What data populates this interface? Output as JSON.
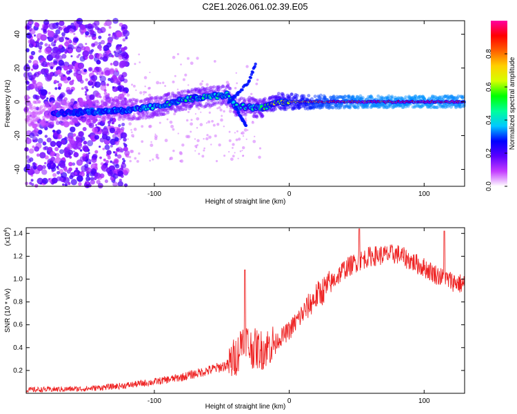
{
  "title": "C2E1.2026.061.02.39.E05",
  "chart_data": [
    {
      "type": "heatmap",
      "xlabel": "Height of straight line (km)",
      "ylabel": "Frequency (Hz)",
      "xlim": [
        -195,
        130
      ],
      "ylim": [
        -50,
        48
      ],
      "xticks": [
        -100,
        0,
        100
      ],
      "xtick_labels": [
        "-100",
        "0",
        "100"
      ],
      "yticks": [
        -40,
        -20,
        0,
        20,
        40
      ],
      "ytick_labels": [
        "-40",
        "-20",
        "0",
        "20",
        "40"
      ],
      "colorbar": {
        "label": "Normalized spectral amplitude",
        "range": [
          0.0,
          1.0
        ],
        "ticks": [
          0.0,
          0.2,
          0.4,
          0.6,
          0.8
        ],
        "tick_labels": [
          "0.0",
          "0.2",
          "0.4",
          "0.6",
          "0.8"
        ],
        "colors": [
          "#ffffff",
          "#c33cff",
          "#5a00ff",
          "#0000ff",
          "#00c8ff",
          "#00ff9a",
          "#00ff00",
          "#d6ff00",
          "#ffd000",
          "#ff6000",
          "#ff0000",
          "#ff00a0"
        ]
      },
      "ridge": [
        {
          "x": -195,
          "f": -7,
          "amp": 0.05
        },
        {
          "x": -180,
          "f": -7,
          "amp": 0.15
        },
        {
          "x": -150,
          "f": -6,
          "amp": 0.3
        },
        {
          "x": -120,
          "f": -5,
          "amp": 0.35
        },
        {
          "x": -100,
          "f": -3,
          "amp": 0.4
        },
        {
          "x": -80,
          "f": 1,
          "amp": 0.45
        },
        {
          "x": -60,
          "f": 3,
          "amp": 0.45
        },
        {
          "x": -45,
          "f": 4,
          "amp": 0.45
        },
        {
          "x": -40,
          "f": -3,
          "amp": 0.45
        },
        {
          "x": -30,
          "f": -3,
          "amp": 0.45
        },
        {
          "x": -20,
          "f": -4,
          "amp": 0.5
        },
        {
          "x": -10,
          "f": 0,
          "amp": 0.6
        },
        {
          "x": 0,
          "f": 0,
          "amp": 0.7
        },
        {
          "x": 20,
          "f": 0,
          "amp": 0.85
        },
        {
          "x": 50,
          "f": 0,
          "amp": 0.95
        },
        {
          "x": 100,
          "f": 0,
          "amp": 0.97
        },
        {
          "x": 130,
          "f": 0,
          "amp": 0.95
        }
      ],
      "branch": [
        {
          "x": -45,
          "f": 0
        },
        {
          "x": -38,
          "f": 5
        },
        {
          "x": -30,
          "f": 12
        },
        {
          "x": -25,
          "f": 22
        },
        {
          "x": -40,
          "f": -3
        },
        {
          "x": -35,
          "f": -10
        },
        {
          "x": -32,
          "f": -14
        }
      ]
    },
    {
      "type": "line",
      "xlabel": "Height of straight line (km)",
      "ylabel": "SNR (10 * v/v)",
      "y_multiplier_label": "(x10",
      "y_multiplier_exp": "4",
      "xlim": [
        -195,
        130
      ],
      "ylim": [
        0.0,
        1.45
      ],
      "xticks": [
        -100,
        0,
        100
      ],
      "xtick_labels": [
        "-100",
        "0",
        "100"
      ],
      "yticks": [
        0.2,
        0.4,
        0.6,
        0.8,
        1.0,
        1.2,
        1.4
      ],
      "ytick_labels": [
        "0.2",
        "0.4",
        "0.6",
        "0.8",
        "1.0",
        "1.2",
        "1.4"
      ],
      "color": "#ee2222",
      "trend": [
        {
          "x": -195,
          "y": 0.03
        },
        {
          "x": -150,
          "y": 0.04
        },
        {
          "x": -120,
          "y": 0.07
        },
        {
          "x": -100,
          "y": 0.1
        },
        {
          "x": -80,
          "y": 0.14
        },
        {
          "x": -60,
          "y": 0.2
        },
        {
          "x": -45,
          "y": 0.25
        },
        {
          "x": -38,
          "y": 0.35
        },
        {
          "x": -33,
          "y": 0.55
        },
        {
          "x": -30,
          "y": 0.4
        },
        {
          "x": -20,
          "y": 0.38
        },
        {
          "x": -10,
          "y": 0.45
        },
        {
          "x": 0,
          "y": 0.55
        },
        {
          "x": 10,
          "y": 0.7
        },
        {
          "x": 20,
          "y": 0.85
        },
        {
          "x": 30,
          "y": 0.95
        },
        {
          "x": 40,
          "y": 1.08
        },
        {
          "x": 50,
          "y": 1.15
        },
        {
          "x": 60,
          "y": 1.2
        },
        {
          "x": 80,
          "y": 1.22
        },
        {
          "x": 100,
          "y": 1.1
        },
        {
          "x": 115,
          "y": 1.0
        },
        {
          "x": 130,
          "y": 0.95
        }
      ],
      "peaks": [
        {
          "x": -33,
          "y": 1.08
        },
        {
          "x": 52,
          "y": 1.44
        },
        {
          "x": 115,
          "y": 1.42
        }
      ]
    }
  ]
}
